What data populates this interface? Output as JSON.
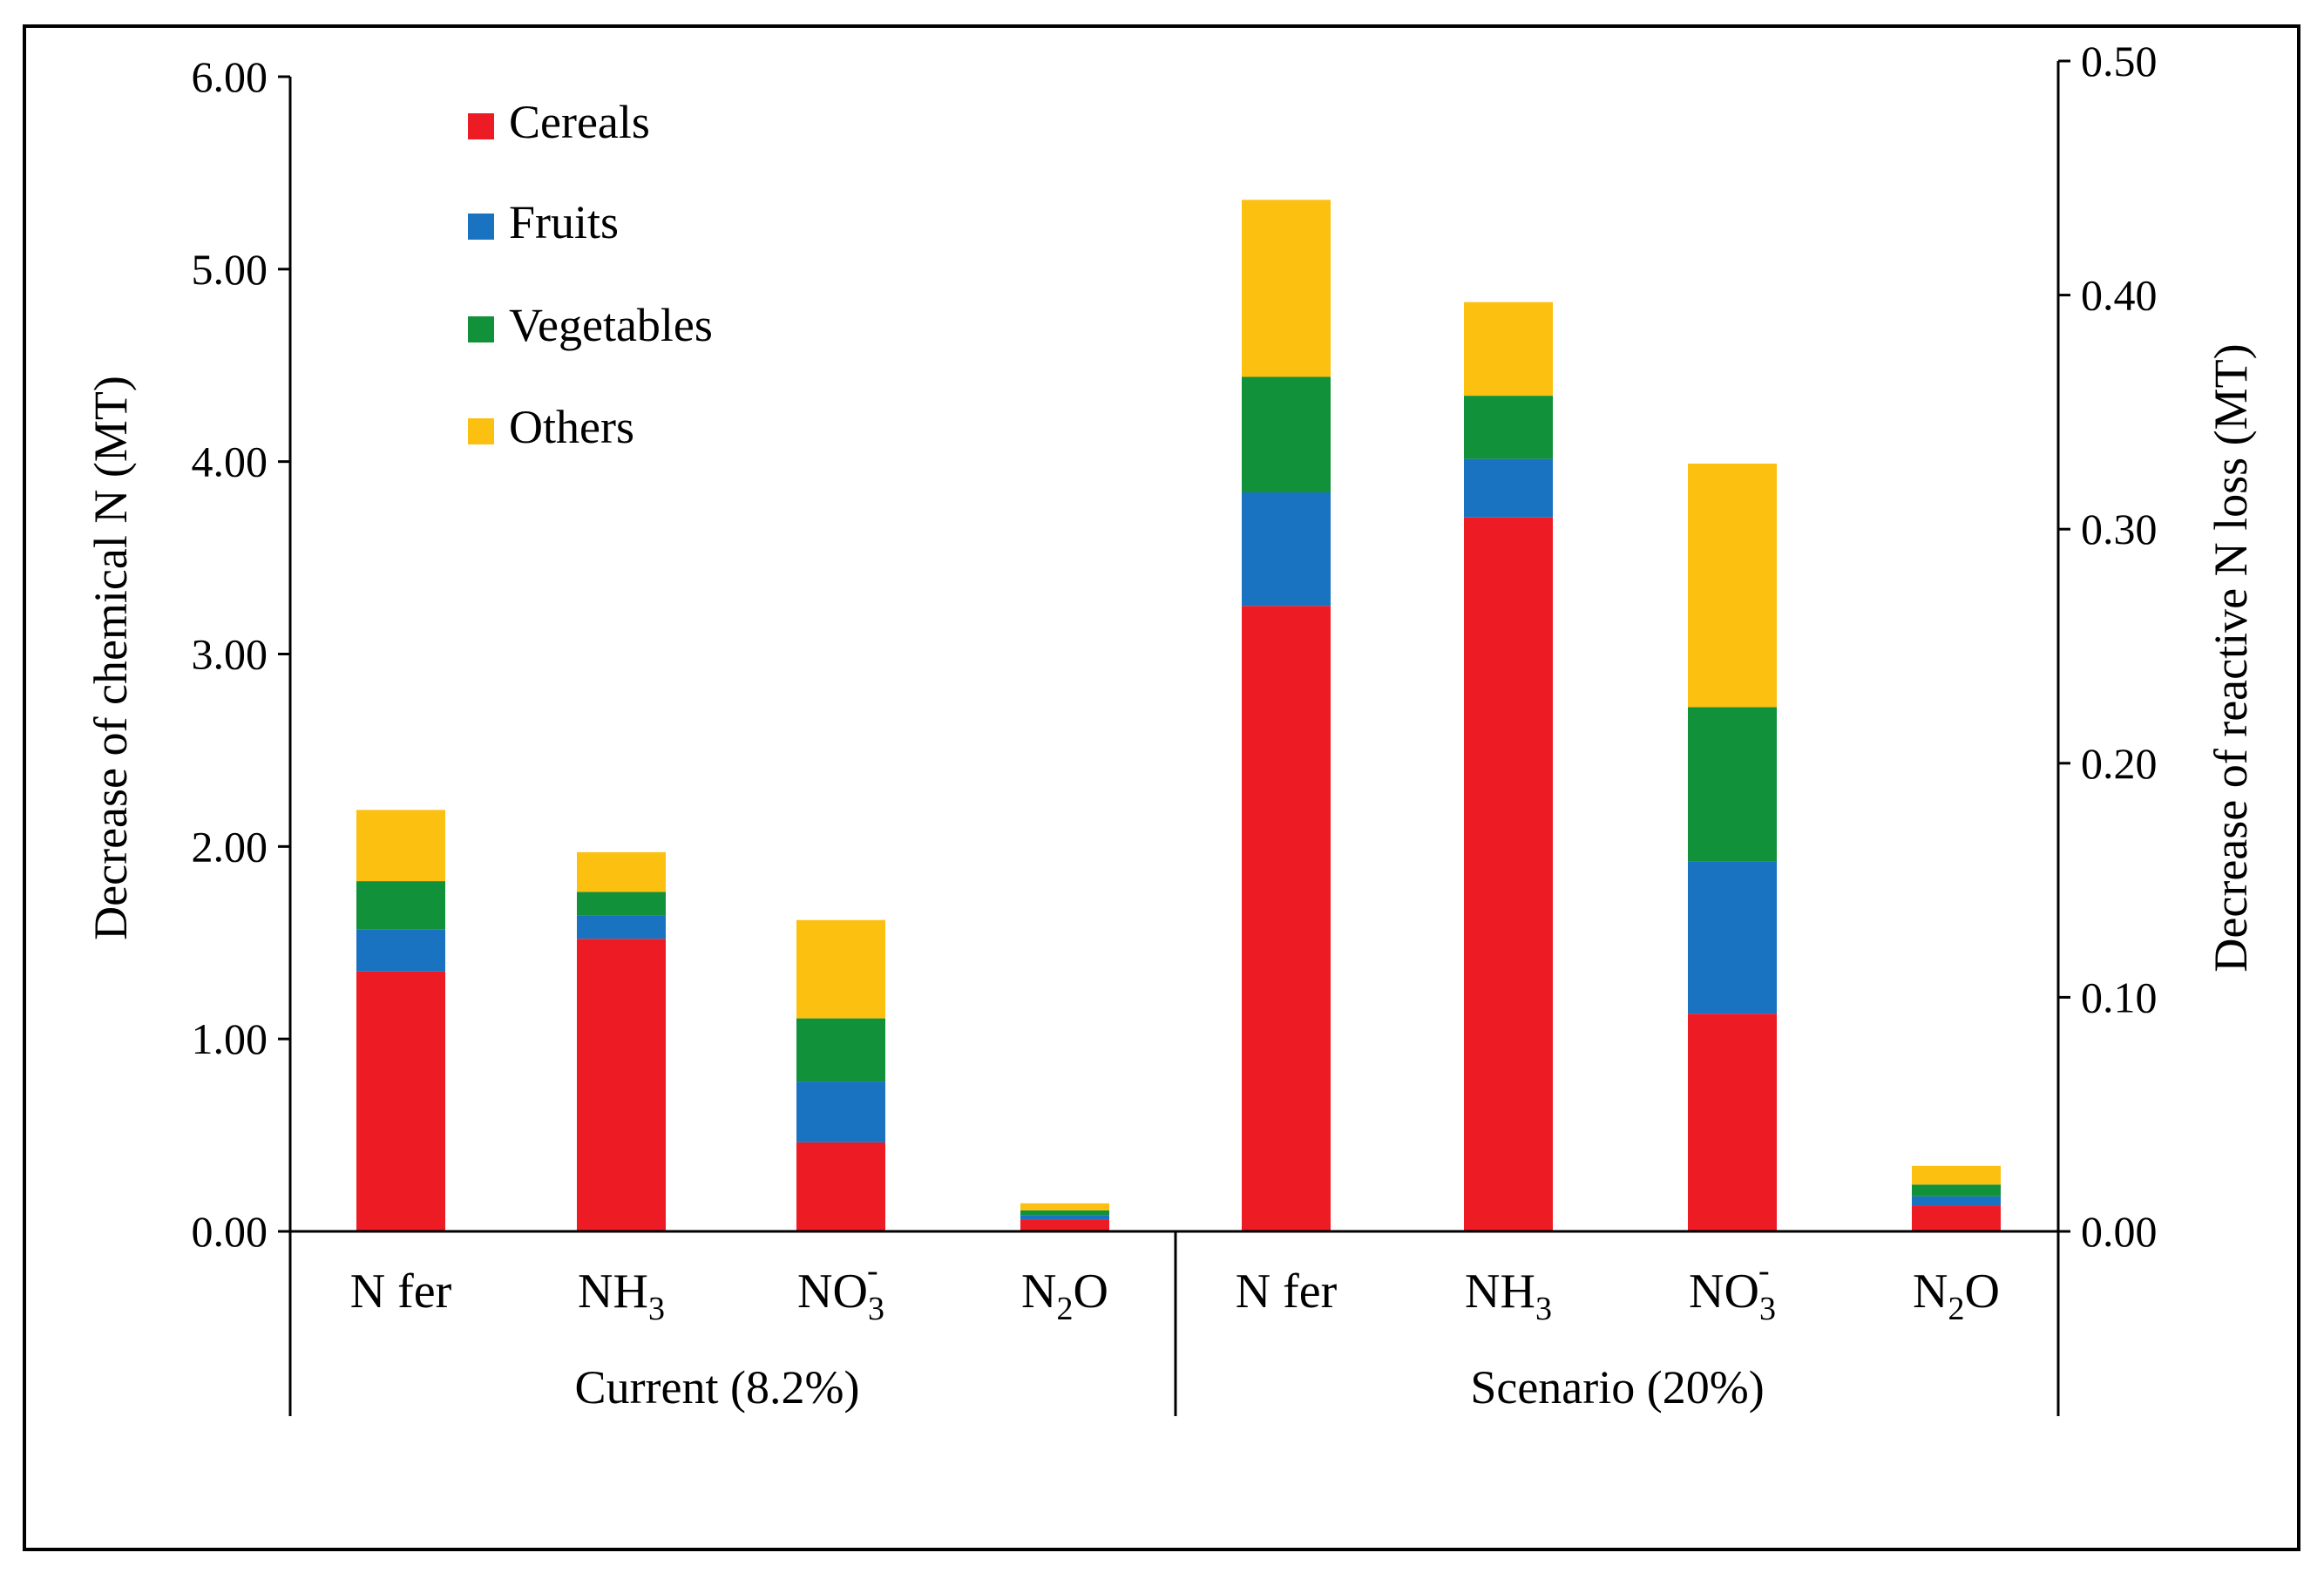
{
  "chart_data": {
    "type": "bar",
    "stacked": true,
    "groups": [
      {
        "label": "Current (8.2%)"
      },
      {
        "label": "Scenario (20%)"
      }
    ],
    "categories": [
      "N fer",
      "NH3",
      "NO3-",
      "N2O",
      "N fer",
      "NH3",
      "NO3-",
      "N2O"
    ],
    "category_labels": [
      {
        "base": "N fer",
        "sub": "",
        "sup": ""
      },
      {
        "base": "NH",
        "sub": "3",
        "sup": ""
      },
      {
        "base": "NO",
        "sub": "3",
        "sup": "-"
      },
      {
        "base": "N",
        "sub": "2",
        "rest": "O",
        "sup": ""
      },
      {
        "base": "N fer",
        "sub": "",
        "sup": ""
      },
      {
        "base": "NH",
        "sub": "3",
        "sup": ""
      },
      {
        "base": "NO",
        "sub": "3",
        "sup": "-"
      },
      {
        "base": "N",
        "sub": "2",
        "rest": "O",
        "sup": ""
      }
    ],
    "axis_for_category": [
      "left",
      "right",
      "right",
      "right",
      "left",
      "right",
      "right",
      "right"
    ],
    "series": [
      {
        "name": "Cereals",
        "color": "#ed1c24",
        "values": [
          1.35,
          0.125,
          0.038,
          0.005,
          3.25,
          0.305,
          0.093,
          0.011
        ]
      },
      {
        "name": "Fruits",
        "color": "#1a73c0",
        "values": [
          0.22,
          0.01,
          0.026,
          0.002,
          0.59,
          0.025,
          0.065,
          0.004
        ]
      },
      {
        "name": "Vegetables",
        "color": "#12913b",
        "values": [
          0.25,
          0.01,
          0.027,
          0.002,
          0.6,
          0.027,
          0.066,
          0.005
        ]
      },
      {
        "name": "Others",
        "color": "#fcc010",
        "values": [
          0.37,
          0.017,
          0.042,
          0.003,
          0.92,
          0.04,
          0.104,
          0.008
        ]
      }
    ],
    "left_axis": {
      "label": "Decrease of  chemical N (MT)",
      "min": 0,
      "max": 6,
      "ticks": [
        "0.00",
        "1.00",
        "2.00",
        "3.00",
        "4.00",
        "5.00",
        "6.00"
      ]
    },
    "right_axis": {
      "label": "Decrease of reactive N loss (MT)",
      "min": 0,
      "max": 0.5,
      "ticks": [
        "0.00",
        "0.10",
        "0.20",
        "0.30",
        "0.40",
        "0.50"
      ]
    },
    "legend_position": "top-left",
    "grid": false
  }
}
